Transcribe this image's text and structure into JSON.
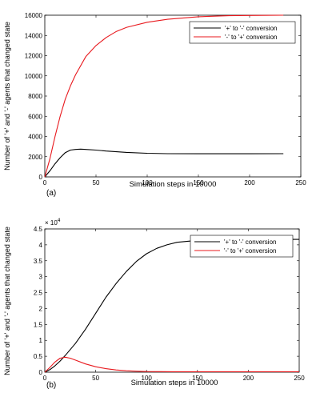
{
  "chart_data": [
    {
      "type": "line",
      "panel_label": "(a)",
      "xlabel": "Simulation steps in 10000",
      "ylabel": "Number of '+' and '-' agents that changed state",
      "xlim": [
        0,
        250
      ],
      "ylim": [
        0,
        16000
      ],
      "xticks": [
        "0",
        "50",
        "100",
        "150",
        "200",
        "250"
      ],
      "yticks": [
        "0",
        "2000",
        "4000",
        "6000",
        "8000",
        "10000",
        "12000",
        "14000",
        "16000"
      ],
      "ytick_values": [
        0,
        2000,
        4000,
        6000,
        8000,
        10000,
        12000,
        14000,
        16000
      ],
      "xtick_values": [
        0,
        50,
        100,
        150,
        200,
        250
      ],
      "exponent_label": "",
      "grid": false,
      "legend_position": "top-right",
      "series": [
        {
          "name": "'+' to '-' conversion",
          "color": "#000000",
          "x": [
            0,
            5,
            10,
            15,
            20,
            25,
            30,
            35,
            40,
            50,
            60,
            80,
            100,
            120,
            150,
            180,
            200,
            233
          ],
          "y": [
            0,
            600,
            1300,
            1900,
            2400,
            2650,
            2720,
            2750,
            2720,
            2650,
            2560,
            2420,
            2340,
            2300,
            2290,
            2290,
            2290,
            2300
          ]
        },
        {
          "name": "'-' to '+' conversion",
          "color": "#e8191e",
          "x": [
            0,
            5,
            10,
            15,
            20,
            25,
            30,
            40,
            50,
            60,
            70,
            80,
            100,
            120,
            150,
            180,
            200,
            233
          ],
          "y": [
            0,
            1800,
            4000,
            6000,
            7700,
            9000,
            10100,
            11900,
            13000,
            13800,
            14400,
            14800,
            15300,
            15600,
            15850,
            15950,
            15980,
            16000
          ]
        }
      ]
    },
    {
      "type": "line",
      "panel_label": "(b)",
      "xlabel": "Simulation steps in 10000",
      "ylabel": "Number of '+' and '-' agents that changed state",
      "xlim": [
        0,
        250
      ],
      "ylim": [
        0,
        45000
      ],
      "xticks": [
        "0",
        "50",
        "100",
        "150",
        "200",
        "250"
      ],
      "yticks": [
        "0",
        "0.5",
        "1",
        "1.5",
        "2",
        "2.5",
        "3",
        "3.5",
        "4",
        "4.5"
      ],
      "ytick_values": [
        0,
        5000,
        10000,
        15000,
        20000,
        25000,
        30000,
        35000,
        40000,
        45000
      ],
      "xtick_values": [
        0,
        50,
        100,
        150,
        200,
        250
      ],
      "exponent_label": "× 10",
      "exponent_power": "4",
      "grid": false,
      "legend_position": "top-right",
      "series": [
        {
          "name": "'+' to '-' conversion",
          "color": "#000000",
          "x": [
            0,
            5,
            10,
            15,
            20,
            30,
            40,
            50,
            60,
            70,
            80,
            90,
            100,
            110,
            120,
            130,
            150,
            175,
            200,
            225,
            250
          ],
          "y": [
            0,
            800,
            2000,
            3500,
            5200,
            9000,
            13500,
            18500,
            23500,
            27800,
            31600,
            34800,
            37200,
            38900,
            40000,
            40800,
            41400,
            41600,
            41700,
            41700,
            41700
          ]
        },
        {
          "name": "'-' to '+' conversion",
          "color": "#e8191e",
          "x": [
            0,
            5,
            10,
            15,
            20,
            25,
            30,
            40,
            50,
            60,
            70,
            80,
            90,
            100,
            125,
            150,
            200,
            250
          ],
          "y": [
            0,
            1500,
            3200,
            4400,
            4700,
            4400,
            3800,
            2600,
            1700,
            1100,
            700,
            450,
            300,
            200,
            150,
            150,
            150,
            150
          ]
        }
      ]
    }
  ]
}
